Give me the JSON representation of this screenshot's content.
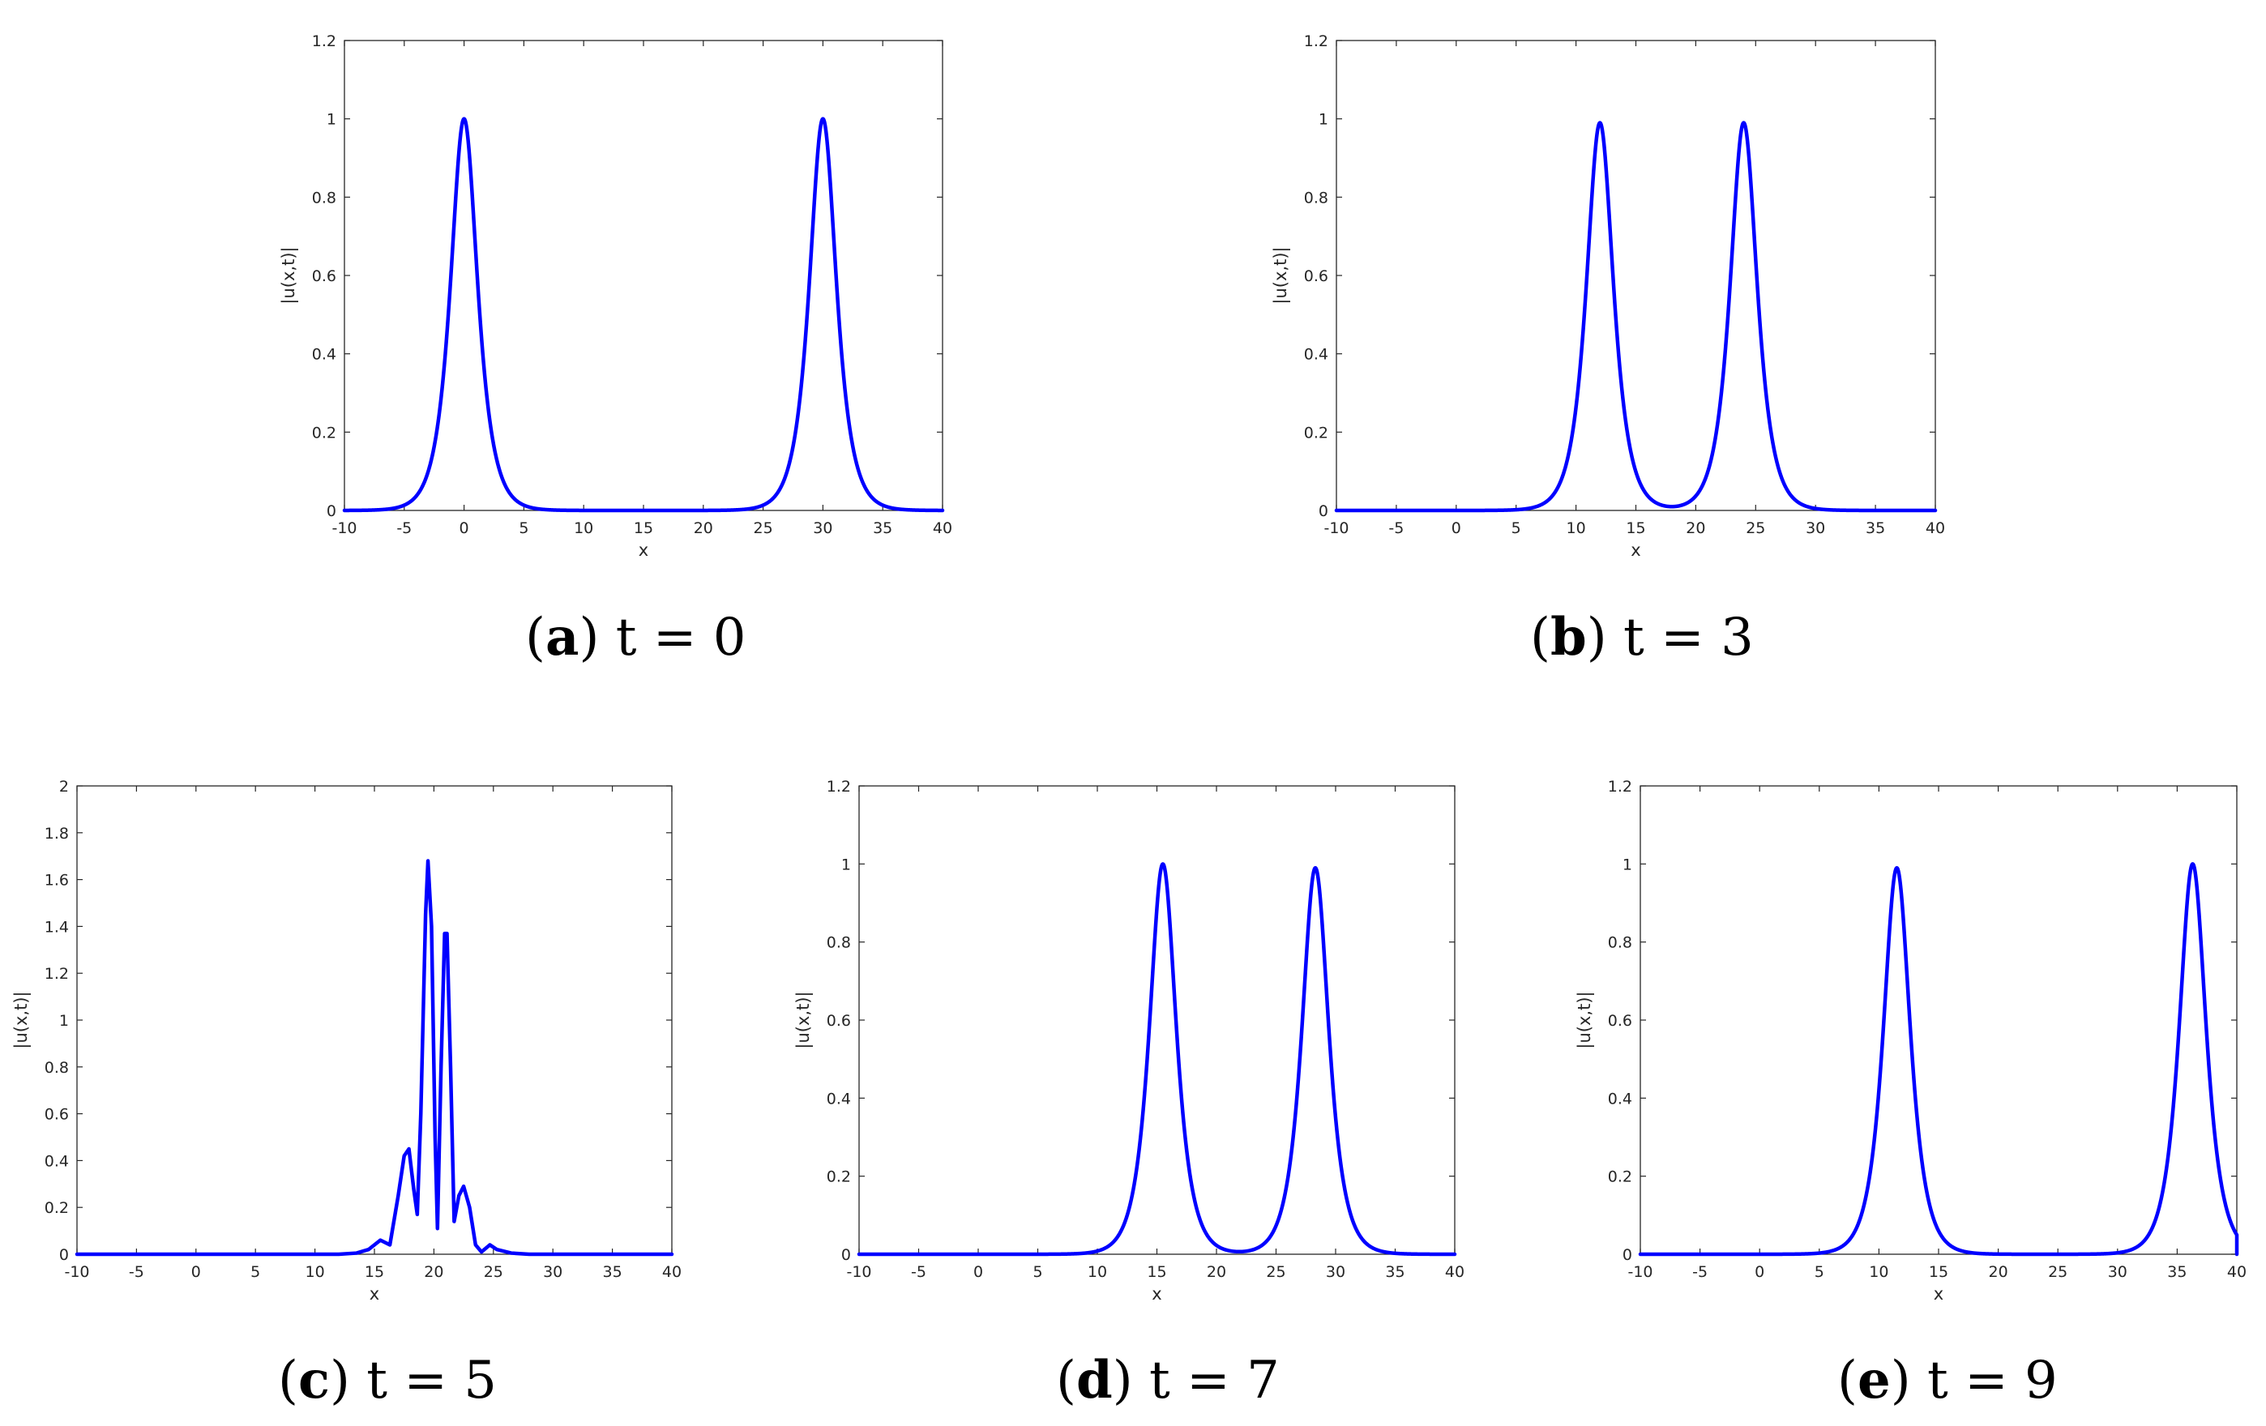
{
  "style": {
    "curve_color": "#0000ff",
    "axis_color": "#262626",
    "background": "#ffffff"
  },
  "chart_data": [
    {
      "id": "a",
      "type": "line",
      "caption": {
        "letter": "a",
        "text": "t = 0"
      },
      "xlabel": "x",
      "ylabel": "|u(x,t)|",
      "xlim": [
        -10,
        40
      ],
      "ylim": [
        0,
        1.2
      ],
      "xticks": [
        -10,
        -5,
        0,
        5,
        10,
        15,
        20,
        25,
        30,
        35,
        40
      ],
      "yticks": [
        0,
        0.2,
        0.4,
        0.6,
        0.8,
        1,
        1.2
      ],
      "series": [
        {
          "peaks": [
            {
              "x": 0,
              "h": 1,
              "w": 1
            },
            {
              "x": 30,
              "h": 1,
              "w": 1
            }
          ]
        }
      ]
    },
    {
      "id": "b",
      "type": "line",
      "caption": {
        "letter": "b",
        "text": "t = 3"
      },
      "xlabel": "x",
      "ylabel": "|u(x,t)|",
      "xlim": [
        -10,
        40
      ],
      "ylim": [
        0,
        1.2
      ],
      "xticks": [
        -10,
        -5,
        0,
        5,
        10,
        15,
        20,
        25,
        30,
        35,
        40
      ],
      "yticks": [
        0,
        0.2,
        0.4,
        0.6,
        0.8,
        1,
        1.2
      ],
      "series": [
        {
          "peaks": [
            {
              "x": 12,
              "h": 0.99,
              "w": 1
            },
            {
              "x": 24,
              "h": 0.99,
              "w": 1
            }
          ]
        }
      ]
    },
    {
      "id": "c",
      "type": "line",
      "caption": {
        "letter": "c",
        "text": "t = 5"
      },
      "xlabel": "x",
      "ylabel": "|u(x,t)|",
      "xlim": [
        -10,
        40
      ],
      "ylim": [
        0,
        2
      ],
      "xticks": [
        -10,
        -5,
        0,
        5,
        10,
        15,
        20,
        25,
        30,
        35,
        40
      ],
      "yticks": [
        0,
        0.2,
        0.4,
        0.6,
        0.8,
        1,
        1.2,
        1.4,
        1.6,
        1.8,
        2
      ],
      "series": [
        {
          "points": [
            [
              -10,
              0
            ],
            [
              12,
              0
            ],
            [
              13.5,
              0.005
            ],
            [
              14.5,
              0.02
            ],
            [
              15.5,
              0.06
            ],
            [
              16.3,
              0.04
            ],
            [
              17,
              0.25
            ],
            [
              17.5,
              0.42
            ],
            [
              17.9,
              0.45
            ],
            [
              18.3,
              0.28
            ],
            [
              18.6,
              0.17
            ],
            [
              18.9,
              0.6
            ],
            [
              19.3,
              1.45
            ],
            [
              19.5,
              1.68
            ],
            [
              19.8,
              1.4
            ],
            [
              20.1,
              0.5
            ],
            [
              20.3,
              0.11
            ],
            [
              20.6,
              0.8
            ],
            [
              20.9,
              1.37
            ],
            [
              21.1,
              1.37
            ],
            [
              21.4,
              0.8
            ],
            [
              21.7,
              0.14
            ],
            [
              22.1,
              0.25
            ],
            [
              22.5,
              0.29
            ],
            [
              23,
              0.2
            ],
            [
              23.5,
              0.04
            ],
            [
              24,
              0.01
            ],
            [
              24.7,
              0.04
            ],
            [
              25.3,
              0.02
            ],
            [
              26.5,
              0.005
            ],
            [
              28,
              0
            ],
            [
              40,
              0
            ]
          ]
        }
      ]
    },
    {
      "id": "d",
      "type": "line",
      "caption": {
        "letter": "d",
        "text": "t = 7"
      },
      "xlabel": "x",
      "ylabel": "|u(x,t)|",
      "xlim": [
        -10,
        40
      ],
      "ylim": [
        0,
        1.2
      ],
      "xticks": [
        -10,
        -5,
        0,
        5,
        10,
        15,
        20,
        25,
        30,
        35,
        40
      ],
      "yticks": [
        0,
        0.2,
        0.4,
        0.6,
        0.8,
        1,
        1.2
      ],
      "series": [
        {
          "peaks": [
            {
              "x": 15.5,
              "h": 1,
              "w": 1
            },
            {
              "x": 28.3,
              "h": 0.99,
              "w": 1
            }
          ]
        }
      ]
    },
    {
      "id": "e",
      "type": "line",
      "caption": {
        "letter": "e",
        "text": "t = 9"
      },
      "xlabel": "x",
      "ylabel": "|u(x,t)|",
      "xlim": [
        -10,
        40
      ],
      "ylim": [
        0,
        1.2
      ],
      "xticks": [
        -10,
        -5,
        0,
        5,
        10,
        15,
        20,
        25,
        30,
        35,
        40
      ],
      "yticks": [
        0,
        0.2,
        0.4,
        0.6,
        0.8,
        1,
        1.2
      ],
      "series": [
        {
          "peaks": [
            {
              "x": 11.5,
              "h": 0.99,
              "w": 1
            },
            {
              "x": 36.3,
              "h": 1,
              "w": 1
            }
          ],
          "end_at_zero": true
        }
      ]
    }
  ]
}
